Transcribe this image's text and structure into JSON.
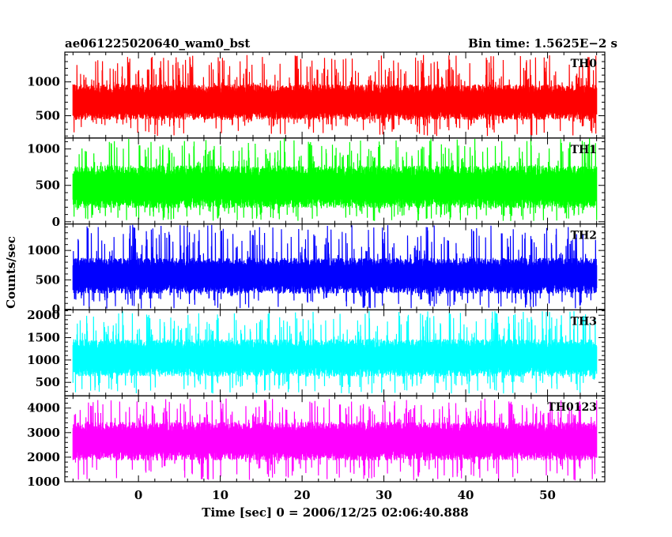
{
  "header": {
    "left": "ae061225020640_wam0_bst",
    "right": "Bin time: 1.5625E−2 s"
  },
  "chart_data": {
    "type": "line",
    "title": "ae061225020640_wam0_bst",
    "subtitle": "Bin time: 1.5625E−2 s",
    "xlabel": "Time [sec] 0 = 2006/12/25 02:06:40.888",
    "ylabel": "Counts/sec",
    "xlim": [
      -9,
      57
    ],
    "data_x_range": [
      -8,
      56
    ],
    "bin_time": 0.015625,
    "x_ticks": [
      0,
      10,
      20,
      30,
      40,
      50
    ],
    "grid": false,
    "panels": [
      {
        "name": "TH0",
        "color": "#ff0000",
        "ylim": [
          170,
          1440
        ],
        "y_ticks": [
          500,
          1000
        ],
        "typical": [
          450,
          950
        ],
        "envelope": [
          200,
          1400
        ]
      },
      {
        "name": "TH1",
        "color": "#00ff00",
        "ylim": [
          -30,
          1150
        ],
        "y_ticks": [
          0,
          500,
          1000
        ],
        "typical": [
          200,
          760
        ],
        "envelope": [
          10,
          1150
        ]
      },
      {
        "name": "TH2",
        "color": "#0000ff",
        "ylim": [
          -10,
          1450
        ],
        "y_ticks": [
          0,
          500,
          1000
        ],
        "typical": [
          280,
          860
        ],
        "envelope": [
          10,
          1440
        ]
      },
      {
        "name": "TH3",
        "color": "#00ffff",
        "ylim": [
          200,
          2120
        ],
        "y_ticks": [
          500,
          1000,
          1500,
          2000
        ],
        "typical": [
          650,
          1450
        ],
        "envelope": [
          250,
          2100
        ]
      },
      {
        "name": "TH0123",
        "color": "#ff00ff",
        "ylim": [
          1000,
          4500
        ],
        "y_ticks": [
          1000,
          2000,
          3000,
          4000
        ],
        "typical": [
          1900,
          3400
        ],
        "envelope": [
          1050,
          4400
        ]
      }
    ]
  }
}
